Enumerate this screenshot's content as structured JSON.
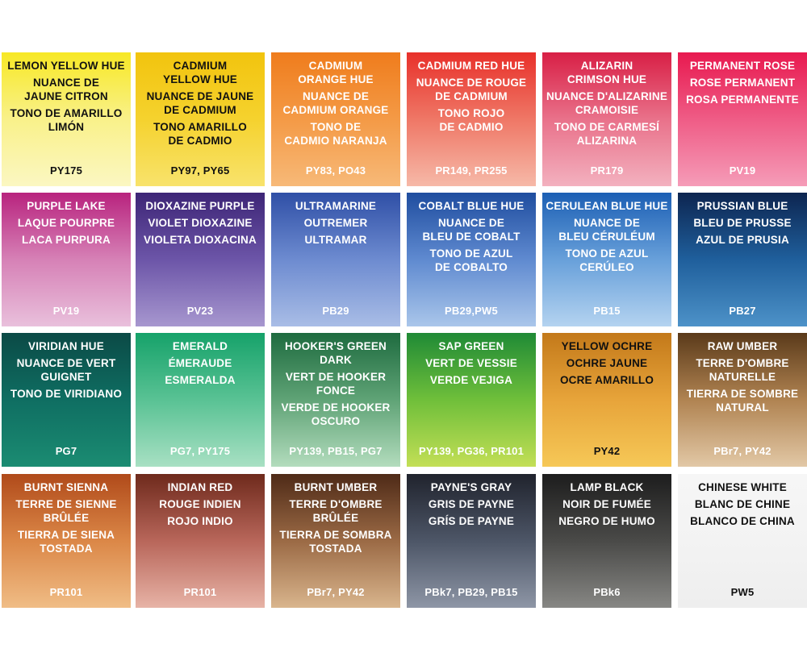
{
  "swatches": [
    {
      "names": [
        "LEMON YELLOW HUE",
        "NUANCE DE\nJAUNE CITRON",
        "TONO DE AMARILLO\nLIMÓN"
      ],
      "pigment": "PY175",
      "colors": [
        "#f7e825",
        "#f9f18a",
        "#fbf7c2"
      ],
      "text": "dark"
    },
    {
      "names": [
        "CADMIUM\nYELLOW HUE",
        "NUANCE DE JAUNE\nDE CADMIUM",
        "TONO AMARILLO\nDE CADMIO"
      ],
      "pigment": "PY97, PY65",
      "colors": [
        "#f2c40e",
        "#f5d22e",
        "#f8e36c"
      ],
      "text": "dark"
    },
    {
      "names": [
        "CADMIUM\nORANGE HUE",
        "NUANCE DE\nCADMIUM ORANGE",
        "TONO DE\nCADMIO NARANJA"
      ],
      "pigment": "PY83, PO43",
      "colors": [
        "#ef7c1c",
        "#f49a46",
        "#f7b978"
      ],
      "text": "light"
    },
    {
      "names": [
        "CADMIUM RED HUE",
        "NUANCE DE ROUGE\nDE CADMIUM",
        "TONO ROJO\nDE CADMIO"
      ],
      "pigment": "PR149, PR255",
      "colors": [
        "#e8302a",
        "#ef7766",
        "#f6b9a8"
      ],
      "text": "light"
    },
    {
      "names": [
        "ALIZARIN\nCRIMSON HUE",
        "NUANCE D'ALIZARINE\nCRAMOISIE",
        "TONO DE CARMESÍ\nALIZARINA"
      ],
      "pigment": "PR179",
      "colors": [
        "#d81f45",
        "#e9718a",
        "#f3b1bf"
      ],
      "text": "light"
    },
    {
      "names": [
        "PERMANENT ROSE",
        "ROSE PERMANENT",
        "ROSA PERMANENTE"
      ],
      "pigment": "PV19",
      "colors": [
        "#e8194f",
        "#ef5c86",
        "#f59cb8"
      ],
      "text": "light"
    },
    {
      "names": [
        "PURPLE LAKE",
        "LAQUE POURPRE",
        "LACA PURPURA"
      ],
      "pigment": "PV19",
      "colors": [
        "#b8237e",
        "#d681b6",
        "#e9c0dc"
      ],
      "text": "light"
    },
    {
      "names": [
        "DIOXAZINE PURPLE",
        "VIOLET DIOXAZINE",
        "VIOLETA DIOXACINA"
      ],
      "pigment": "PV23",
      "colors": [
        "#3d2576",
        "#6c55a8",
        "#a797cf"
      ],
      "text": "light"
    },
    {
      "names": [
        "ULTRAMARINE",
        "OUTREMER",
        "ULTRAMAR"
      ],
      "pigment": "PB29",
      "colors": [
        "#2f4fa6",
        "#6d8bd0",
        "#a9bde6"
      ],
      "text": "light"
    },
    {
      "names": [
        "COBALT BLUE HUE",
        "NUANCE DE\nBLEU DE COBALT",
        "TONO DE AZUL\nDE COBALTO"
      ],
      "pigment": "PB29,PW5",
      "colors": [
        "#1f4d9f",
        "#5f8ad0",
        "#aac6ea"
      ],
      "text": "light"
    },
    {
      "names": [
        "CERULEAN BLUE HUE",
        "NUANCE DE\nBLEU CÉRULÉUM",
        "TONO DE AZUL\nCERÚLEO"
      ],
      "pigment": "PB15",
      "colors": [
        "#1c5fb4",
        "#68a0da",
        "#b4d3f0"
      ],
      "text": "light"
    },
    {
      "names": [
        "PRUSSIAN BLUE",
        "BLEU DE PRUSSE",
        "AZUL DE PRUSIA"
      ],
      "pigment": "PB27",
      "colors": [
        "#0d2550",
        "#1f5f9c",
        "#4d92c8"
      ],
      "text": "light"
    },
    {
      "names": [
        "VIRIDIAN HUE",
        "NUANCE DE VERT\nGUIGNET",
        "TONO DE VIRIDIANO"
      ],
      "pigment": "PG7",
      "colors": [
        "#0b4a46",
        "#0f6e62",
        "#1b8c72"
      ],
      "text": "light"
    },
    {
      "names": [
        "EMERALD",
        "ÉMERAUDE",
        "ESMERALDA"
      ],
      "pigment": "PG7, PY175",
      "colors": [
        "#16a26a",
        "#59c294",
        "#a8e0c3"
      ],
      "text": "light"
    },
    {
      "names": [
        "HOOKER'S GREEN\nDARK",
        "VERT DE HOOKER\nFONCE",
        "VERDE DE HOOKER\nOSCURO"
      ],
      "pigment": "PY139, PB15, PG7",
      "colors": [
        "#1e6b3f",
        "#5fa376",
        "#b3dcbd"
      ],
      "text": "light"
    },
    {
      "names": [
        "SAP GREEN",
        "VERT DE VESSIE",
        "VERDE VEJIGA"
      ],
      "pigment": "PY139, PG36, PR101",
      "colors": [
        "#1f8a36",
        "#6fbf3a",
        "#c3df56"
      ],
      "text": "light"
    },
    {
      "names": [
        "YELLOW OCHRE",
        "OCHRE JAUNE",
        "OCRE AMARILLO"
      ],
      "pigment": "PY42",
      "colors": [
        "#c3791a",
        "#e7a43a",
        "#f6c857"
      ],
      "text": "dark"
    },
    {
      "names": [
        "RAW UMBER",
        "TERRE D'OMBRE\nNATURELLE",
        "TIERRA DE SOMBRE\nNATURAL"
      ],
      "pigment": "PBr7, PY42",
      "colors": [
        "#5a3a1a",
        "#b08351",
        "#e2c8a6"
      ],
      "text": "light"
    },
    {
      "names": [
        "BURNT SIENNA",
        "TERRE DE SIENNE\nBRÛLÉE",
        "TIERRA DE SIENA\nTOSTADA"
      ],
      "pigment": "PR101",
      "colors": [
        "#b04a1a",
        "#db8747",
        "#f0bd86"
      ],
      "text": "light"
    },
    {
      "names": [
        "INDIAN RED",
        "ROUGE INDIEN",
        "ROJO INDIO"
      ],
      "pigment": "PR101",
      "colors": [
        "#6e2a1c",
        "#b8665a",
        "#e7b3a6"
      ],
      "text": "light"
    },
    {
      "names": [
        "BURNT UMBER",
        "TERRE D'OMBRE\nBRÛLÉE",
        "TIERRA DE SOMBRA\nTOSTADA"
      ],
      "pigment": "PBr7, PY42",
      "colors": [
        "#4e2a17",
        "#9b6a45",
        "#d9b58d"
      ],
      "text": "light"
    },
    {
      "names": [
        "PAYNE'S GRAY",
        "GRIS DE PAYNE",
        "GRÍS DE PAYNE"
      ],
      "pigment": "PBk7, PB29, PB15",
      "colors": [
        "#20232d",
        "#4d5667",
        "#8e96a6"
      ],
      "text": "light"
    },
    {
      "names": [
        "LAMP BLACK",
        "NOIR DE FUMÉE",
        "NEGRO DE HUMO"
      ],
      "pigment": "PBk6",
      "colors": [
        "#1d1d1d",
        "#4a4a48",
        "#878784"
      ],
      "text": "light"
    },
    {
      "names": [
        "CHINESE WHITE",
        "BLANC DE CHINE",
        "BLANCO DE CHINA"
      ],
      "pigment": "PW5",
      "colors": [
        "#f6f6f6",
        "#f3f3f3",
        "#eeeeee"
      ],
      "text": "dark"
    }
  ]
}
